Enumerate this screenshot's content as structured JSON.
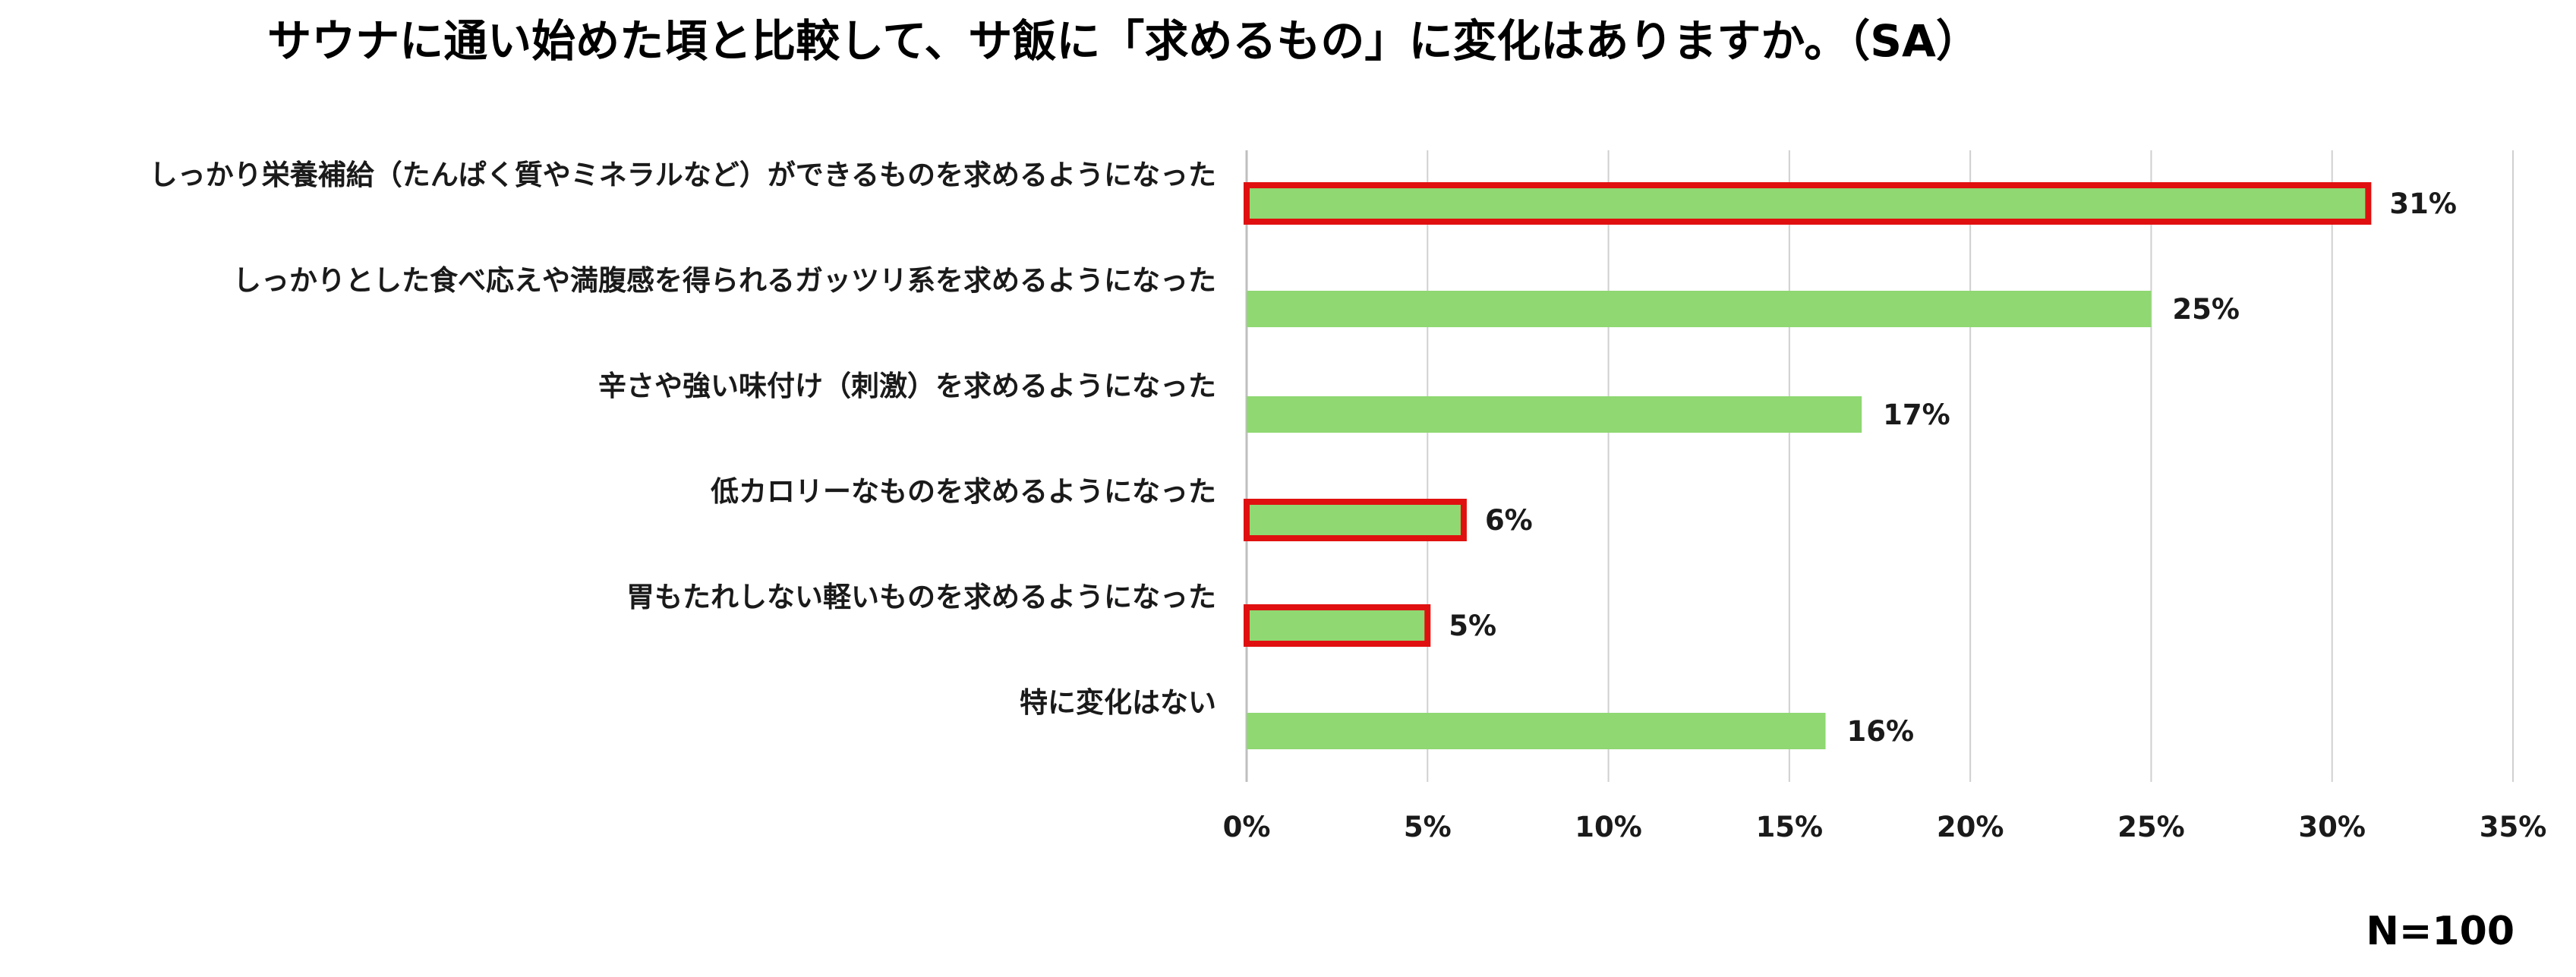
{
  "chart_data": {
    "type": "bar",
    "orientation": "horizontal",
    "title": "サウナに通い始めた頃と比較して、サ飯に「求めるもの」に変化はありますか。（SA）",
    "categories": [
      "しっかり栄養補給（たんぱく質やミネラルなど）ができるものを求めるようになった",
      "しっかりとした食べ応えや満腹感を得られるガッツリ系を求めるようになった",
      "辛さや強い味付け（刺激）を求めるようになった",
      "低カロリーなものを求めるようになった",
      "胃もたれしない軽いものを求めるようになった",
      "特に変化はない"
    ],
    "values": [
      31,
      25,
      17,
      6,
      5,
      16
    ],
    "value_labels": [
      "31%",
      "25%",
      "17%",
      "6%",
      "5%",
      "16%"
    ],
    "highlighted": [
      true,
      false,
      false,
      true,
      true,
      false
    ],
    "xlim": [
      0,
      35
    ],
    "xticks": [
      0,
      5,
      10,
      15,
      20,
      25,
      30,
      35
    ],
    "xtick_labels": [
      "0%",
      "5%",
      "10%",
      "15%",
      "20%",
      "25%",
      "30%",
      "35%"
    ],
    "xlabel": "",
    "ylabel": "",
    "grid": "vertical",
    "legend": "none",
    "bar_color": "#8fd872",
    "highlight_color": "#e01010",
    "grid_color": "#d0d0d0",
    "note": "N=100"
  }
}
